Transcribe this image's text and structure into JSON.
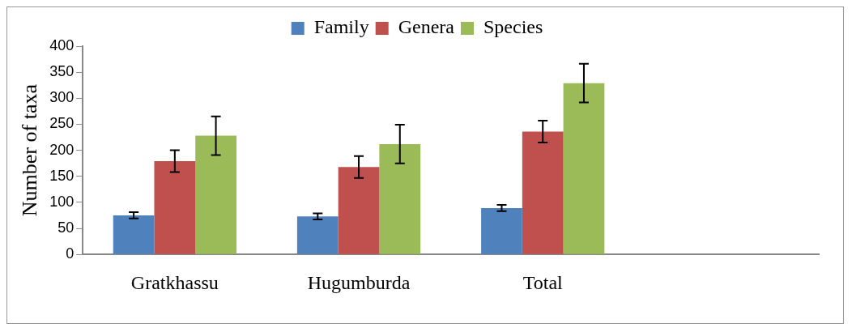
{
  "chart_data": {
    "type": "bar",
    "ylabel": "Number of taxa",
    "categories": [
      "Gratkhassu",
      "Hugumburda",
      "Total",
      null
    ],
    "series": [
      {
        "name": "Family",
        "color": "#4f81bd",
        "values": [
          75,
          73,
          89,
          null
        ],
        "errors": [
          6,
          6,
          6,
          null
        ]
      },
      {
        "name": "Genera",
        "color": "#c0504d",
        "values": [
          179,
          168,
          236,
          null
        ],
        "errors": [
          21,
          21,
          21,
          null
        ]
      },
      {
        "name": "Species",
        "color": "#9bbb59",
        "values": [
          228,
          212,
          329,
          null
        ],
        "errors": [
          37,
          37,
          37,
          null
        ]
      }
    ],
    "ylim": [
      0,
      400
    ],
    "yticks": [
      0,
      50,
      100,
      150,
      200,
      250,
      300,
      350,
      400
    ],
    "grid": false,
    "legend": "top"
  }
}
